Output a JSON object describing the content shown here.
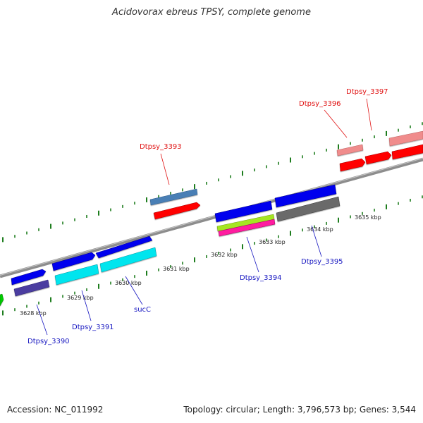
{
  "title": "Acidovorax ebreus TPSY, complete genome",
  "footer": {
    "accession": "Accession: NC_011992",
    "stats": "Topology: circular; Length: 3,796,573 bp; Genes: 3,544"
  },
  "colors": {
    "backbone": "#8a8a8a",
    "tick": "#1e7d1e",
    "label_red": "#e01010",
    "label_blue": "#1515c0"
  },
  "kbp_labels": [
    "3628 kbp",
    "3629 kbp",
    "3630 kbp",
    "3631 kbp",
    "3632 kbp",
    "3633 kbp",
    "3634 kbp",
    "3635 kbp"
  ],
  "gene_labels": {
    "dtpsy_3390": "Dtpsy_3390",
    "dtpsy_3391": "Dtpsy_3391",
    "succ": "sucC",
    "dtpsy_3393": "Dtpsy_3393",
    "dtpsy_3394": "Dtpsy_3394",
    "dtpsy_3395": "Dtpsy_3395",
    "dtpsy_3396": "Dtpsy_3396",
    "dtpsy_3397": "Dtpsy_3397"
  }
}
